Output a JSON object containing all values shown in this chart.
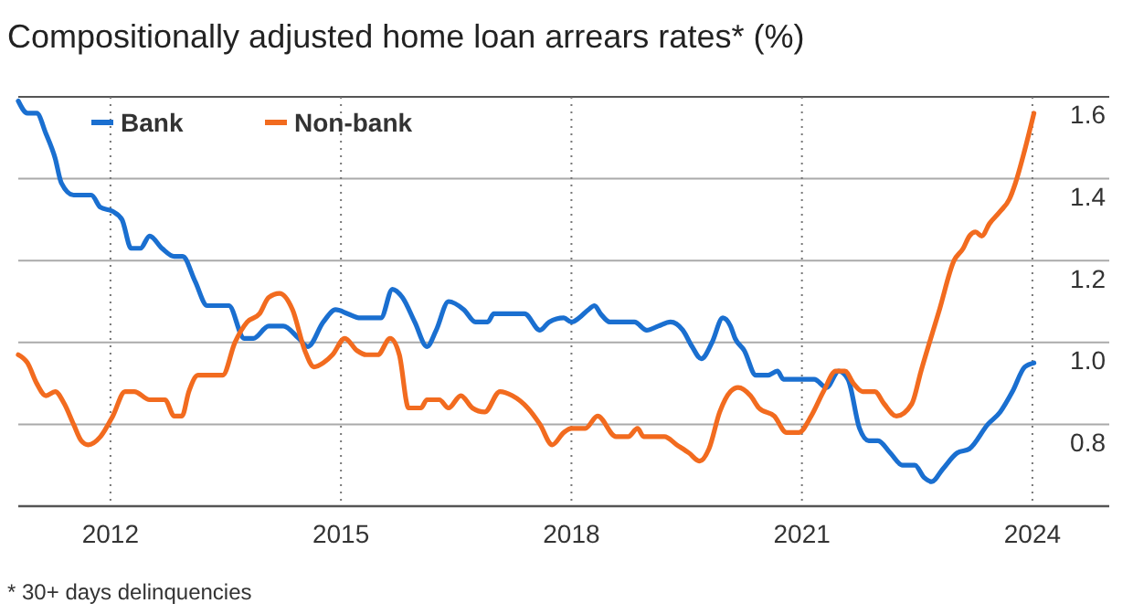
{
  "chart_data": {
    "type": "line",
    "title": "Compositionally adjusted home loan arrears rates* (%)",
    "annotations": [
      "* 30+ days delinquencies"
    ],
    "xlim": [
      2010.8,
      2025
    ],
    "xticks": [
      2012,
      2015,
      2018,
      2021,
      2024
    ],
    "ylim": [
      0.6,
      1.6
    ],
    "yticks": [
      0.8,
      {
        "value": 1.0,
        "label": "1.0"
      },
      1.2,
      1.4,
      1.6
    ],
    "grid": true,
    "legend": "top left",
    "series": [
      {
        "name": "Bank",
        "color": "#1a6fd0",
        "x": [
          2010.8,
          2010.92,
          2011.04,
          2011.16,
          2011.28,
          2011.36,
          2011.52,
          2011.75,
          2011.87,
          2012.03,
          2012.15,
          2012.27,
          2012.39,
          2012.51,
          2012.67,
          2012.83,
          2012.94,
          2013.1,
          2013.26,
          2013.54,
          2013.74,
          2013.86,
          2014.06,
          2014.25,
          2014.45,
          2014.57,
          2014.77,
          2014.93,
          2015.09,
          2015.25,
          2015.4,
          2015.52,
          2015.67,
          2015.8,
          2015.96,
          2016.12,
          2016.24,
          2016.4,
          2016.6,
          2016.75,
          2016.91,
          2016.99,
          2017.39,
          2017.59,
          2017.71,
          2017.9,
          2018.0,
          2018.1,
          2018.22,
          2018.3,
          2018.38,
          2018.5,
          2018.82,
          2018.98,
          2019.13,
          2019.29,
          2019.45,
          2019.57,
          2019.69,
          2019.83,
          2019.97,
          2020.07,
          2020.13,
          2020.25,
          2020.4,
          2020.56,
          2020.68,
          2020.76,
          2021.16,
          2021.32,
          2021.48,
          2021.6,
          2021.75,
          2021.87,
          2021.99,
          2022.15,
          2022.31,
          2022.47,
          2022.59,
          2022.69,
          2022.83,
          2023.02,
          2023.18,
          2023.42,
          2023.58,
          2023.74,
          2023.9,
          2024.02
        ],
        "values": [
          1.59,
          1.56,
          1.56,
          1.51,
          1.45,
          1.39,
          1.36,
          1.36,
          1.33,
          1.32,
          1.3,
          1.23,
          1.23,
          1.26,
          1.23,
          1.21,
          1.21,
          1.15,
          1.09,
          1.09,
          1.01,
          1.01,
          1.04,
          1.04,
          1.01,
          0.99,
          1.05,
          1.08,
          1.07,
          1.06,
          1.06,
          1.06,
          1.13,
          1.11,
          1.05,
          0.99,
          1.03,
          1.1,
          1.08,
          1.05,
          1.05,
          1.07,
          1.07,
          1.03,
          1.05,
          1.06,
          1.05,
          1.06,
          1.08,
          1.09,
          1.07,
          1.05,
          1.05,
          1.03,
          1.04,
          1.05,
          1.03,
          0.99,
          0.96,
          1.0,
          1.06,
          1.04,
          1.01,
          0.98,
          0.92,
          0.92,
          0.93,
          0.91,
          0.91,
          0.89,
          0.93,
          0.91,
          0.79,
          0.76,
          0.76,
          0.73,
          0.7,
          0.7,
          0.67,
          0.66,
          0.69,
          0.73,
          0.74,
          0.8,
          0.83,
          0.88,
          0.94,
          0.95
        ]
      },
      {
        "name": "Non-bank",
        "color": "#f26b1f",
        "x": [
          2010.8,
          2010.92,
          2011.04,
          2011.16,
          2011.28,
          2011.4,
          2011.52,
          2011.62,
          2011.71,
          2011.87,
          2012.03,
          2012.19,
          2012.31,
          2012.51,
          2012.71,
          2012.83,
          2012.93,
          2013.02,
          2013.14,
          2013.46,
          2013.62,
          2013.78,
          2013.94,
          2014.06,
          2014.2,
          2014.37,
          2014.53,
          2014.65,
          2014.77,
          2014.89,
          2015.05,
          2015.21,
          2015.33,
          2015.48,
          2015.64,
          2015.76,
          2015.88,
          2016.04,
          2016.12,
          2016.28,
          2016.4,
          2016.56,
          2016.71,
          2016.87,
          2017.07,
          2017.23,
          2017.43,
          2017.59,
          2017.75,
          2017.9,
          2018.0,
          2018.18,
          2018.34,
          2018.58,
          2018.74,
          2018.86,
          2018.94,
          2019.21,
          2019.37,
          2019.53,
          2019.67,
          2019.79,
          2019.93,
          2020.07,
          2020.17,
          2020.33,
          2020.44,
          2020.64,
          2020.8,
          2020.96,
          2021.12,
          2021.28,
          2021.44,
          2021.56,
          2021.67,
          2021.79,
          2021.95,
          2022.07,
          2022.23,
          2022.43,
          2022.55,
          2022.79,
          2022.98,
          2023.1,
          2023.18,
          2023.26,
          2023.34,
          2023.44,
          2023.58,
          2023.7,
          2023.78,
          2023.9,
          2024.02
        ],
        "values": [
          0.97,
          0.95,
          0.9,
          0.87,
          0.88,
          0.85,
          0.8,
          0.76,
          0.75,
          0.77,
          0.82,
          0.88,
          0.88,
          0.86,
          0.86,
          0.82,
          0.82,
          0.88,
          0.92,
          0.92,
          1.0,
          1.05,
          1.07,
          1.11,
          1.12,
          1.08,
          0.98,
          0.94,
          0.95,
          0.97,
          1.01,
          0.98,
          0.97,
          0.97,
          1.01,
          0.97,
          0.84,
          0.84,
          0.86,
          0.86,
          0.84,
          0.87,
          0.84,
          0.83,
          0.88,
          0.87,
          0.84,
          0.8,
          0.75,
          0.78,
          0.79,
          0.79,
          0.82,
          0.77,
          0.77,
          0.79,
          0.77,
          0.77,
          0.75,
          0.73,
          0.71,
          0.74,
          0.83,
          0.88,
          0.89,
          0.87,
          0.84,
          0.82,
          0.78,
          0.78,
          0.82,
          0.88,
          0.93,
          0.93,
          0.9,
          0.88,
          0.88,
          0.85,
          0.82,
          0.85,
          0.93,
          1.08,
          1.2,
          1.23,
          1.26,
          1.27,
          1.26,
          1.29,
          1.32,
          1.35,
          1.39,
          1.47,
          1.56
        ]
      }
    ]
  }
}
